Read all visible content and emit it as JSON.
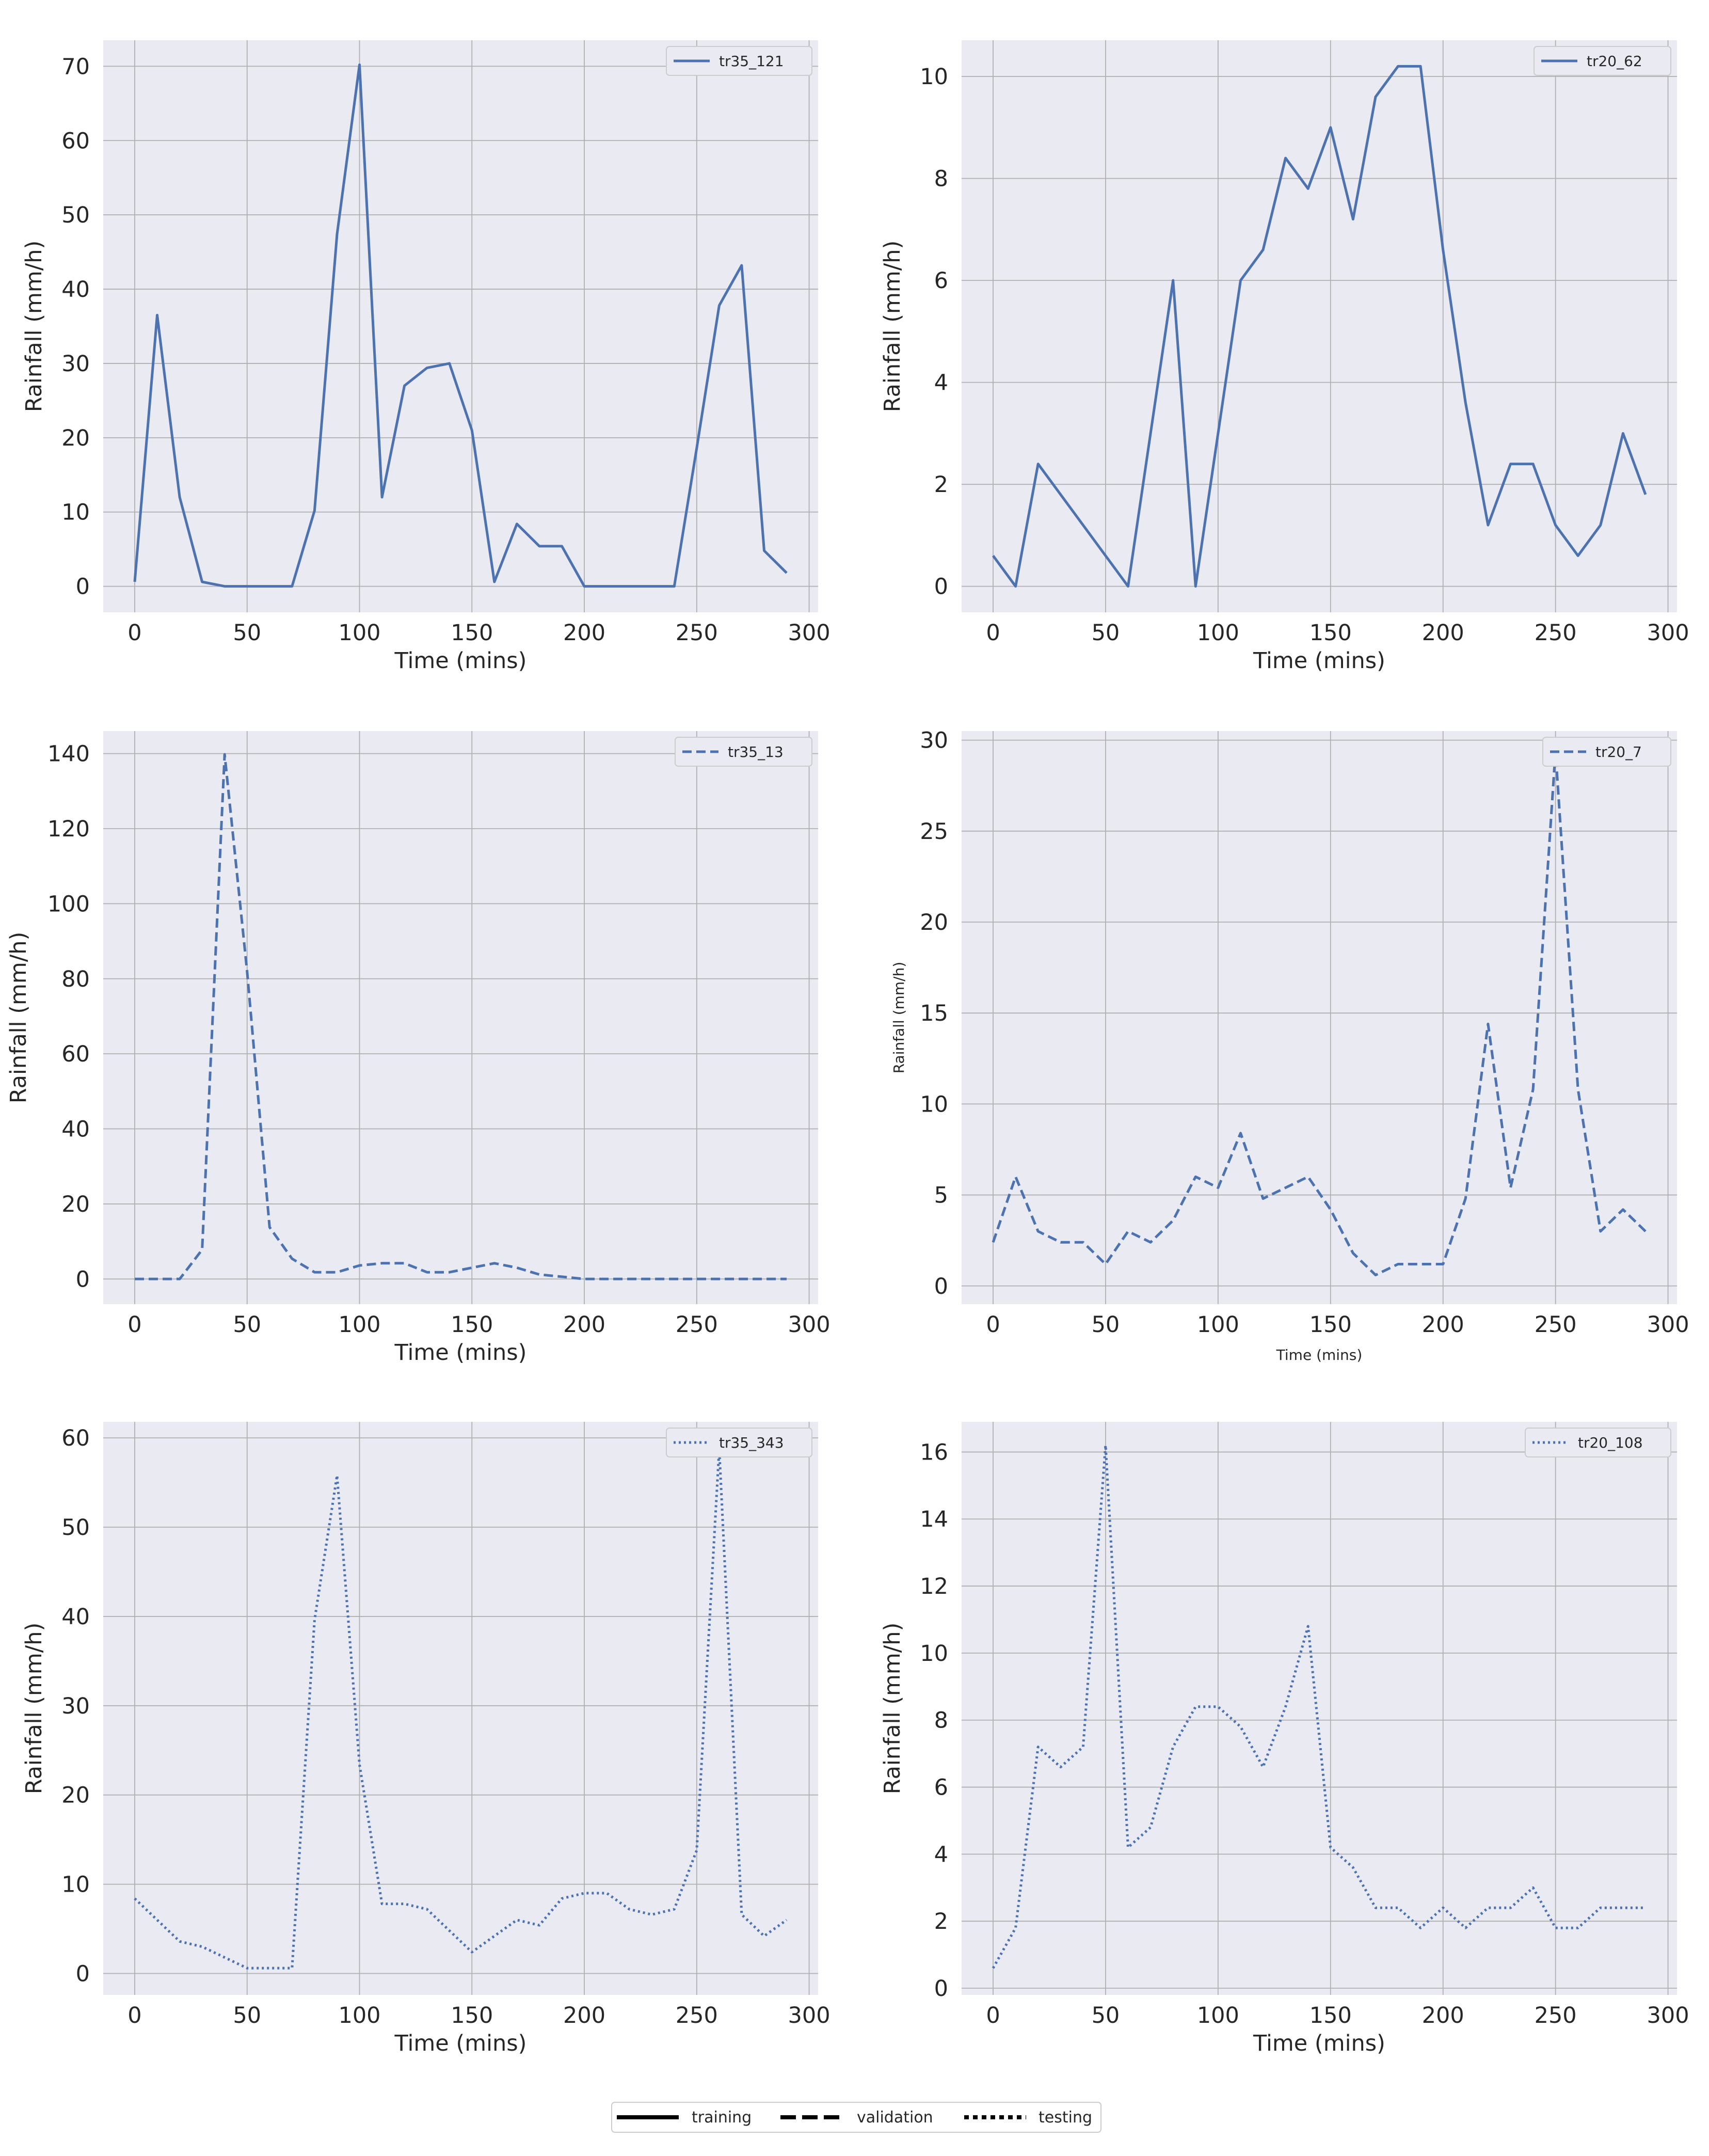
{
  "colors": {
    "line": "#4c72b0",
    "panel_bg": "#eaeaf2",
    "grid": "#b0b0b0",
    "legend_line": "#000000"
  },
  "chart_data": [
    {
      "type": "line",
      "style": "solid",
      "xlabel": "Time (mins)",
      "ylabel": "Rainfall (mm/h)",
      "xlim": [
        -14,
        304
      ],
      "ylim": [
        -3.5,
        73.5
      ],
      "xticks": [
        0,
        50,
        100,
        150,
        200,
        250,
        300
      ],
      "yticks": [
        0,
        10,
        20,
        30,
        40,
        50,
        60,
        70
      ],
      "legend_position": "top-right",
      "grid": true,
      "series": [
        {
          "name": "tr35_121",
          "x": [
            0,
            10,
            20,
            30,
            40,
            50,
            60,
            70,
            80,
            90,
            100,
            110,
            120,
            130,
            140,
            150,
            160,
            170,
            180,
            190,
            200,
            210,
            220,
            230,
            240,
            250,
            260,
            270,
            280,
            290
          ],
          "y": [
            0.6,
            36.5,
            12,
            0.6,
            0,
            0,
            0,
            0,
            10.2,
            47.4,
            70.2,
            12,
            27,
            29.4,
            30,
            21,
            0.6,
            8.4,
            5.4,
            5.4,
            0,
            0,
            0,
            0,
            0,
            18.6,
            37.8,
            43.2,
            4.8,
            1.8
          ]
        }
      ]
    },
    {
      "type": "line",
      "style": "solid",
      "xlabel": "Time (mins)",
      "ylabel": "Rainfall (mm/h)",
      "xlim": [
        -14,
        304
      ],
      "ylim": [
        -0.51,
        10.71
      ],
      "xticks": [
        0,
        50,
        100,
        150,
        200,
        250,
        300
      ],
      "yticks": [
        0,
        2,
        4,
        6,
        8,
        10
      ],
      "legend_position": "top-right",
      "grid": true,
      "series": [
        {
          "name": "tr20_62",
          "x": [
            0,
            10,
            20,
            60,
            80,
            90,
            110,
            120,
            130,
            140,
            150,
            160,
            170,
            180,
            190,
            200,
            210,
            220,
            230,
            240,
            250,
            260,
            270,
            280,
            290
          ],
          "y": [
            0.6,
            0,
            2.4,
            0,
            6,
            0,
            6,
            6.6,
            8.4,
            7.8,
            9,
            7.2,
            9.6,
            10.2,
            10.2,
            6.6,
            3.6,
            1.2,
            2.4,
            2.4,
            1.2,
            0.6,
            1.2,
            3,
            1.8
          ]
        }
      ]
    },
    {
      "type": "line",
      "style": "dashed",
      "xlabel": "Time (mins)",
      "ylabel": "Rainfall (mm/h)",
      "xlim": [
        -14,
        304
      ],
      "ylim": [
        -6.7,
        146
      ],
      "xticks": [
        0,
        50,
        100,
        150,
        200,
        250,
        300
      ],
      "yticks": [
        0,
        20,
        40,
        60,
        80,
        100,
        120,
        140
      ],
      "legend_position": "top-right",
      "grid": true,
      "series": [
        {
          "name": "tr35_13",
          "x": [
            0,
            10,
            20,
            30,
            40,
            50,
            60,
            70,
            80,
            90,
            100,
            110,
            120,
            130,
            140,
            150,
            160,
            170,
            180,
            190,
            200,
            210,
            220,
            230,
            240,
            250,
            260,
            270,
            280,
            290
          ],
          "y": [
            0,
            0,
            0,
            7.8,
            139.8,
            82,
            13.8,
            5.4,
            1.8,
            1.8,
            3.6,
            4.2,
            4.2,
            1.8,
            1.8,
            3,
            4.2,
            3,
            1.2,
            0.6,
            0,
            0,
            0,
            0,
            0,
            0,
            0,
            0,
            0,
            0
          ]
        }
      ]
    },
    {
      "type": "line",
      "style": "dashed",
      "xlabel": "Time (mins)",
      "ylabel": "Rainfall (mm/h)",
      "xlim": [
        -14,
        304
      ],
      "ylim": [
        -1,
        30.5
      ],
      "xticks": [
        0,
        50,
        100,
        150,
        200,
        250,
        300
      ],
      "yticks": [
        0,
        5,
        10,
        15,
        20,
        25,
        30
      ],
      "legend_position": "top-right",
      "grid": true,
      "series": [
        {
          "name": "tr20_7",
          "x": [
            0,
            10,
            20,
            30,
            40,
            50,
            60,
            70,
            80,
            90,
            100,
            110,
            120,
            130,
            140,
            150,
            160,
            170,
            180,
            190,
            200,
            210,
            220,
            230,
            240,
            250,
            260,
            270,
            280,
            290
          ],
          "y": [
            2.4,
            6,
            3,
            2.4,
            2.4,
            1.2,
            3,
            2.4,
            3.6,
            6,
            5.4,
            8.4,
            4.8,
            5.4,
            6,
            4.2,
            1.8,
            0.6,
            1.2,
            1.2,
            1.2,
            4.8,
            14.4,
            5.4,
            10.8,
            29.4,
            10.8,
            3,
            4.2,
            3
          ]
        }
      ]
    },
    {
      "type": "line",
      "style": "dotted",
      "xlabel": "Time (mins)",
      "ylabel": "Rainfall (mm/h)",
      "xlim": [
        -14,
        304
      ],
      "ylim": [
        -2.4,
        61.8
      ],
      "xticks": [
        0,
        50,
        100,
        150,
        200,
        250,
        300
      ],
      "yticks": [
        0,
        10,
        20,
        30,
        40,
        50,
        60
      ],
      "legend_position": "top-right",
      "grid": true,
      "series": [
        {
          "name": "tr35_343",
          "x": [
            0,
            10,
            20,
            30,
            40,
            50,
            60,
            70,
            80,
            90,
            100,
            110,
            120,
            130,
            140,
            150,
            160,
            170,
            180,
            190,
            200,
            210,
            220,
            230,
            240,
            250,
            260,
            270,
            280,
            290
          ],
          "y": [
            8.4,
            6,
            3.6,
            3,
            1.8,
            0.6,
            0.6,
            0.6,
            39.6,
            55.8,
            23.4,
            7.8,
            7.8,
            7.2,
            4.8,
            2.4,
            4.2,
            6,
            5.4,
            8.4,
            9,
            9,
            7.2,
            6.6,
            7.2,
            13.8,
            58.8,
            6.6,
            4.2,
            6
          ]
        }
      ]
    },
    {
      "type": "line",
      "style": "dotted",
      "xlabel": "Time (mins)",
      "ylabel": "Rainfall (mm/h)",
      "xlim": [
        -14,
        304
      ],
      "ylim": [
        -0.2,
        16.9
      ],
      "xticks": [
        0,
        50,
        100,
        150,
        200,
        250,
        300
      ],
      "yticks": [
        0,
        2,
        4,
        6,
        8,
        10,
        12,
        14,
        16
      ],
      "legend_position": "top-right",
      "grid": true,
      "series": [
        {
          "name": "tr20_108",
          "x": [
            0,
            10,
            20,
            30,
            40,
            50,
            60,
            70,
            80,
            90,
            100,
            110,
            120,
            130,
            140,
            150,
            160,
            170,
            180,
            190,
            200,
            210,
            220,
            230,
            240,
            250,
            260,
            270,
            280,
            290
          ],
          "y": [
            0.6,
            1.8,
            7.2,
            6.6,
            7.2,
            16.2,
            4.2,
            4.8,
            7.2,
            8.4,
            8.4,
            7.8,
            6.6,
            8.4,
            10.8,
            4.2,
            3.6,
            2.4,
            2.4,
            1.8,
            2.4,
            1.8,
            2.4,
            2.4,
            3,
            1.8,
            1.8,
            2.4,
            2.4,
            2.4
          ]
        }
      ]
    }
  ],
  "bottom_legend": {
    "position": "bottom-center",
    "entries": [
      {
        "label": "training",
        "style": "solid"
      },
      {
        "label": "validation",
        "style": "dashed"
      },
      {
        "label": "testing",
        "style": "dotted"
      }
    ]
  }
}
